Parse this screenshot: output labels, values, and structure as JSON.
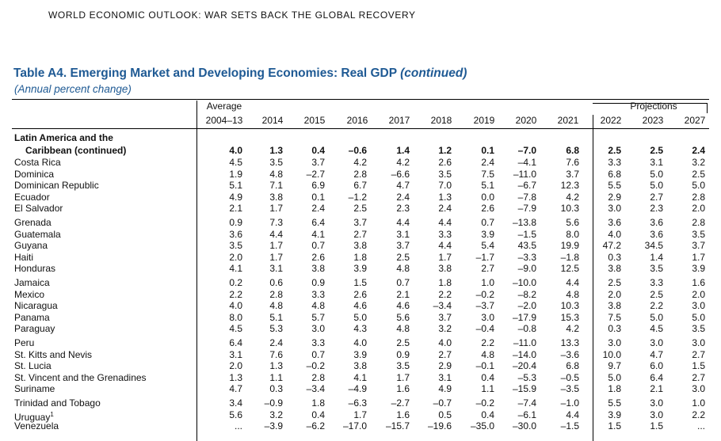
{
  "running_head": "WORLD ECONOMIC OUTLOOK: WAR SETS BACK THE GLOBAL RECOVERY",
  "title": {
    "main": "Table A4. Emerging Market and Developing Economies: Real GDP ",
    "continued": "(continued)",
    "subtitle": "(Annual percent change)"
  },
  "header": {
    "average_label": "Average",
    "projections_label": "Projections",
    "columns": [
      "2004–13",
      "2014",
      "2015",
      "2016",
      "2017",
      "2018",
      "2019",
      "2020",
      "2021",
      "2022",
      "2023",
      "2027"
    ]
  },
  "table": {
    "region_line1": "Latin America and the",
    "region_line2": "Caribbean (continued)",
    "region_values": [
      "4.0",
      "1.3",
      "0.4",
      "–0.6",
      "1.4",
      "1.2",
      "0.1",
      "–7.0",
      "6.8",
      "2.5",
      "2.5",
      "2.4"
    ],
    "rows": [
      {
        "name": "Costa Rica",
        "values": [
          "4.5",
          "3.5",
          "3.7",
          "4.2",
          "4.2",
          "2.6",
          "2.4",
          "–4.1",
          "7.6",
          "3.3",
          "3.1",
          "3.2"
        ]
      },
      {
        "name": "Dominica",
        "values": [
          "1.9",
          "4.8",
          "–2.7",
          "2.8",
          "–6.6",
          "3.5",
          "7.5",
          "–11.0",
          "3.7",
          "6.8",
          "5.0",
          "2.5"
        ]
      },
      {
        "name": "Dominican Republic",
        "values": [
          "5.1",
          "7.1",
          "6.9",
          "6.7",
          "4.7",
          "7.0",
          "5.1",
          "–6.7",
          "12.3",
          "5.5",
          "5.0",
          "5.0"
        ]
      },
      {
        "name": "Ecuador",
        "values": [
          "4.9",
          "3.8",
          "0.1",
          "–1.2",
          "2.4",
          "1.3",
          "0.0",
          "–7.8",
          "4.2",
          "2.9",
          "2.7",
          "2.8"
        ]
      },
      {
        "name": "El Salvador",
        "values": [
          "2.1",
          "1.7",
          "2.4",
          "2.5",
          "2.3",
          "2.4",
          "2.6",
          "–7.9",
          "10.3",
          "3.0",
          "2.3",
          "2.0"
        ]
      },
      {
        "name": "Grenada",
        "values": [
          "0.9",
          "7.3",
          "6.4",
          "3.7",
          "4.4",
          "4.4",
          "0.7",
          "–13.8",
          "5.6",
          "3.6",
          "3.6",
          "2.8"
        ]
      },
      {
        "name": "Guatemala",
        "values": [
          "3.6",
          "4.4",
          "4.1",
          "2.7",
          "3.1",
          "3.3",
          "3.9",
          "–1.5",
          "8.0",
          "4.0",
          "3.6",
          "3.5"
        ]
      },
      {
        "name": "Guyana",
        "values": [
          "3.5",
          "1.7",
          "0.7",
          "3.8",
          "3.7",
          "4.4",
          "5.4",
          "43.5",
          "19.9",
          "47.2",
          "34.5",
          "3.7"
        ]
      },
      {
        "name": "Haiti",
        "values": [
          "2.0",
          "1.7",
          "2.6",
          "1.8",
          "2.5",
          "1.7",
          "–1.7",
          "–3.3",
          "–1.8",
          "0.3",
          "1.4",
          "1.7"
        ]
      },
      {
        "name": "Honduras",
        "values": [
          "4.1",
          "3.1",
          "3.8",
          "3.9",
          "4.8",
          "3.8",
          "2.7",
          "–9.0",
          "12.5",
          "3.8",
          "3.5",
          "3.9"
        ]
      },
      {
        "name": "Jamaica",
        "values": [
          "0.2",
          "0.6",
          "0.9",
          "1.5",
          "0.7",
          "1.8",
          "1.0",
          "–10.0",
          "4.4",
          "2.5",
          "3.3",
          "1.6"
        ]
      },
      {
        "name": "Mexico",
        "values": [
          "2.2",
          "2.8",
          "3.3",
          "2.6",
          "2.1",
          "2.2",
          "–0.2",
          "–8.2",
          "4.8",
          "2.0",
          "2.5",
          "2.0"
        ]
      },
      {
        "name": "Nicaragua",
        "values": [
          "4.0",
          "4.8",
          "4.8",
          "4.6",
          "4.6",
          "–3.4",
          "–3.7",
          "–2.0",
          "10.3",
          "3.8",
          "2.2",
          "3.0"
        ]
      },
      {
        "name": "Panama",
        "values": [
          "8.0",
          "5.1",
          "5.7",
          "5.0",
          "5.6",
          "3.7",
          "3.0",
          "–17.9",
          "15.3",
          "7.5",
          "5.0",
          "5.0"
        ]
      },
      {
        "name": "Paraguay",
        "values": [
          "4.5",
          "5.3",
          "3.0",
          "4.3",
          "4.8",
          "3.2",
          "–0.4",
          "–0.8",
          "4.2",
          "0.3",
          "4.5",
          "3.5"
        ]
      },
      {
        "name": "Peru",
        "values": [
          "6.4",
          "2.4",
          "3.3",
          "4.0",
          "2.5",
          "4.0",
          "2.2",
          "–11.0",
          "13.3",
          "3.0",
          "3.0",
          "3.0"
        ]
      },
      {
        "name": "St. Kitts and Nevis",
        "values": [
          "3.1",
          "7.6",
          "0.7",
          "3.9",
          "0.9",
          "2.7",
          "4.8",
          "–14.0",
          "–3.6",
          "10.0",
          "4.7",
          "2.7"
        ]
      },
      {
        "name": "St. Lucia",
        "values": [
          "2.0",
          "1.3",
          "–0.2",
          "3.8",
          "3.5",
          "2.9",
          "–0.1",
          "–20.4",
          "6.8",
          "9.7",
          "6.0",
          "1.5"
        ]
      },
      {
        "name": "St. Vincent and the Grenadines",
        "values": [
          "1.3",
          "1.1",
          "2.8",
          "4.1",
          "1.7",
          "3.1",
          "0.4",
          "–5.3",
          "–0.5",
          "5.0",
          "6.4",
          "2.7"
        ]
      },
      {
        "name": "Suriname",
        "values": [
          "4.7",
          "0.3",
          "–3.4",
          "–4.9",
          "1.6",
          "4.9",
          "1.1",
          "–15.9",
          "–3.5",
          "1.8",
          "2.1",
          "3.0"
        ]
      },
      {
        "name": "Trinidad and Tobago",
        "values": [
          "3.4",
          "–0.9",
          "1.8",
          "–6.3",
          "–2.7",
          "–0.7",
          "–0.2",
          "–7.4",
          "–1.0",
          "5.5",
          "3.0",
          "1.0"
        ]
      },
      {
        "name": "Uruguay",
        "sup": "1",
        "values": [
          "5.6",
          "3.2",
          "0.4",
          "1.7",
          "1.6",
          "0.5",
          "0.4",
          "–6.1",
          "4.4",
          "3.9",
          "3.0",
          "2.2"
        ]
      },
      {
        "name": "Venezuela",
        "values": [
          "...",
          "–3.9",
          "–6.2",
          "–17.0",
          "–15.7",
          "–19.6",
          "–35.0",
          "–30.0",
          "–1.5",
          "1.5",
          "1.5",
          "..."
        ]
      }
    ]
  }
}
